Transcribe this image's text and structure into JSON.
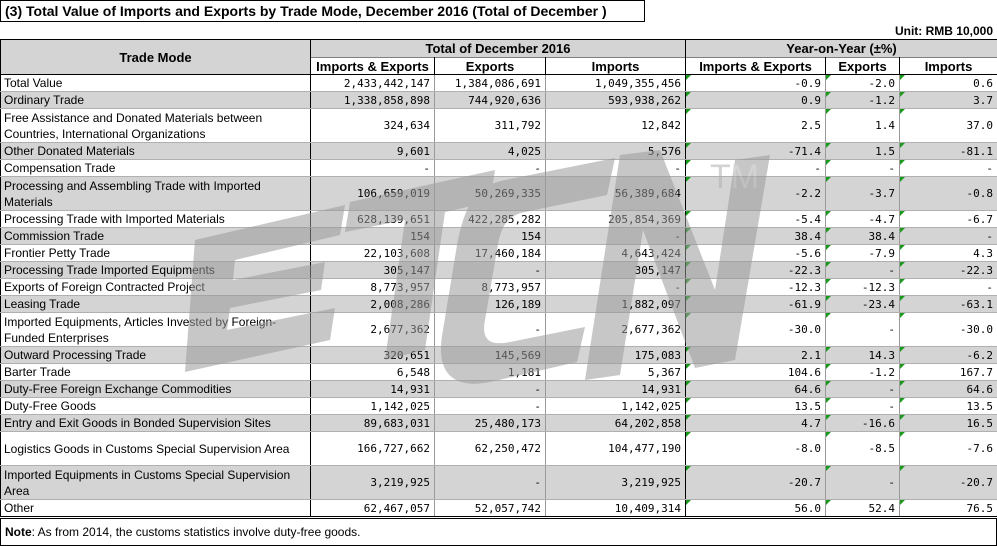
{
  "title": "(3) Total Value of Imports and Exports by Trade Mode, December 2016 (Total of December )",
  "unit": "Unit: RMB 10,000",
  "headers": {
    "trade_mode": "Trade Mode",
    "group1": "Total of December 2016",
    "group2": "Year-on-Year (±%)",
    "sub": [
      "Imports & Exports",
      "Exports",
      "Imports",
      "Imports & Exports",
      "Exports",
      "Imports"
    ]
  },
  "watermark": "ETCN™",
  "rows": [
    {
      "mode": "Total Value",
      "v": [
        "2,433,442,147",
        "1,384,086,691",
        "1,049,355,456",
        "-0.9",
        "-2.0",
        "0.6"
      ]
    },
    {
      "mode": "Ordinary Trade",
      "v": [
        "1,338,858,898",
        "744,920,636",
        "593,938,262",
        "0.9",
        "-1.2",
        "3.7"
      ]
    },
    {
      "mode": "Free Assistance and Donated Materials between Countries, International Organizations",
      "v": [
        "324,634",
        "311,792",
        "12,842",
        "2.5",
        "1.4",
        "37.0"
      ]
    },
    {
      "mode": "Other Donated Materials",
      "v": [
        "9,601",
        "4,025",
        "5,576",
        "-71.4",
        "1.5",
        "-81.1"
      ]
    },
    {
      "mode": "Compensation Trade",
      "v": [
        "-",
        "-",
        "-",
        "-",
        "-",
        "-"
      ]
    },
    {
      "mode": "Processing and Assembling Trade with Imported Materials",
      "v": [
        "106,659,019",
        "50,269,335",
        "56,389,684",
        "-2.2",
        "-3.7",
        "-0.8"
      ]
    },
    {
      "mode": "Processing Trade with Imported Materials",
      "v": [
        "628,139,651",
        "422,285,282",
        "205,854,369",
        "-5.4",
        "-4.7",
        "-6.7"
      ]
    },
    {
      "mode": "Commission Trade",
      "v": [
        "154",
        "154",
        "-",
        "38.4",
        "38.4",
        "-"
      ]
    },
    {
      "mode": "Frontier Petty Trade",
      "v": [
        "22,103,608",
        "17,460,184",
        "4,643,424",
        "-5.6",
        "-7.9",
        "4.3"
      ]
    },
    {
      "mode": "Processing Trade Imported Equipments",
      "v": [
        "305,147",
        "-",
        "305,147",
        "-22.3",
        "-",
        "-22.3"
      ]
    },
    {
      "mode": "Exports of Foreign Contracted Project",
      "v": [
        "8,773,957",
        "8,773,957",
        "-",
        "-12.3",
        "-12.3",
        "-"
      ]
    },
    {
      "mode": "Leasing Trade",
      "v": [
        "2,008,286",
        "126,189",
        "1,882,097",
        "-61.9",
        "-23.4",
        "-63.1"
      ]
    },
    {
      "mode": "Imported Equipments, Articles Invested by Foreign-Funded Enterprises",
      "v": [
        "2,677,362",
        "-",
        "2,677,362",
        "-30.0",
        "-",
        "-30.0"
      ]
    },
    {
      "mode": "Outward Processing Trade",
      "v": [
        "320,651",
        "145,569",
        "175,083",
        "2.1",
        "14.3",
        "-6.2"
      ]
    },
    {
      "mode": "Barter Trade",
      "v": [
        "6,548",
        "1,181",
        "5,367",
        "104.6",
        "-1.2",
        "167.7"
      ]
    },
    {
      "mode": "Duty-Free Foreign Exchange Commodities",
      "v": [
        "14,931",
        "-",
        "14,931",
        "64.6",
        "-",
        "64.6"
      ]
    },
    {
      "mode": "Duty-Free Goods",
      "v": [
        "1,142,025",
        "-",
        "1,142,025",
        "13.5",
        "-",
        "13.5"
      ]
    },
    {
      "mode": "Entry and Exit Goods in Bonded Supervision Sites",
      "v": [
        "89,683,031",
        "25,480,173",
        "64,202,858",
        "4.7",
        "-16.6",
        "16.5"
      ]
    },
    {
      "mode": "Logistics Goods in Customs Special Supervision Area",
      "v": [
        "166,727,662",
        "62,250,472",
        "104,477,190",
        "-8.0",
        "-8.5",
        "-7.6"
      ]
    },
    {
      "mode": "Imported Equipments in Customs Special Supervision Area",
      "v": [
        "3,219,925",
        "-",
        "3,219,925",
        "-20.7",
        "-",
        "-20.7"
      ]
    },
    {
      "mode": "Other",
      "v": [
        "62,467,057",
        "52,057,742",
        "10,409,314",
        "56.0",
        "52.4",
        "76.5"
      ]
    }
  ],
  "note": {
    "label": "Note",
    "text": ": As from 2014, the customs statistics involve duty-free goods."
  }
}
